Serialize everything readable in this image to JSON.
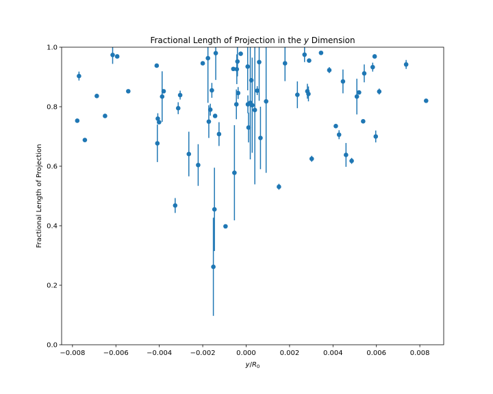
{
  "chart_data": {
    "type": "scatter",
    "title": "Fractional Length of Projection in the y Dimension",
    "title_parts": [
      "Fractional Length of Projection in the ",
      "y",
      " Dimension"
    ],
    "xlabel": "y/R₀",
    "xlabel_parts": {
      "y": "y",
      "slash": "/",
      "R": "R",
      "sub": "0"
    },
    "ylabel": "Fractional Length of Projection",
    "xlim": [
      -0.0085,
      0.0091
    ],
    "ylim": [
      0.0,
      1.0
    ],
    "xticks": [
      -0.008,
      -0.006,
      -0.004,
      -0.002,
      0.0,
      0.002,
      0.004,
      0.006,
      0.008
    ],
    "xtick_labels": [
      "−0.008",
      "−0.006",
      "−0.004",
      "−0.002",
      "0.000",
      "0.002",
      "0.004",
      "0.006",
      "0.008"
    ],
    "yticks": [
      0.0,
      0.2,
      0.4,
      0.6,
      0.8,
      1.0
    ],
    "ytick_labels": [
      "0.0",
      "0.2",
      "0.4",
      "0.6",
      "0.8",
      "1.0"
    ],
    "grid": false,
    "color": "#1f77b4",
    "points": [
      {
        "x": -0.00778,
        "y": 0.753,
        "err": 0.0
      },
      {
        "x": -0.0077,
        "y": 0.903,
        "err": 0.015
      },
      {
        "x": -0.00743,
        "y": 0.688,
        "err": 0.0
      },
      {
        "x": -0.00688,
        "y": 0.836,
        "err": 0.0
      },
      {
        "x": -0.0065,
        "y": 0.769,
        "err": 0.0
      },
      {
        "x": -0.00615,
        "y": 0.974,
        "err": 0.03
      },
      {
        "x": -0.00594,
        "y": 0.969,
        "err": 0.0
      },
      {
        "x": -0.00543,
        "y": 0.852,
        "err": 0.0
      },
      {
        "x": -0.00412,
        "y": 0.938,
        "err": 0.0
      },
      {
        "x": -0.00409,
        "y": 0.677,
        "err": 0.063
      },
      {
        "x": -0.00407,
        "y": 0.76,
        "err": 0.018
      },
      {
        "x": -0.00401,
        "y": 0.748,
        "err": 0.0
      },
      {
        "x": -0.00387,
        "y": 0.834,
        "err": 0.085
      },
      {
        "x": -0.0038,
        "y": 0.852,
        "err": 0.0
      },
      {
        "x": -0.00327,
        "y": 0.468,
        "err": 0.025
      },
      {
        "x": -0.00313,
        "y": 0.795,
        "err": 0.02
      },
      {
        "x": -0.00304,
        "y": 0.839,
        "err": 0.015
      },
      {
        "x": -0.00264,
        "y": 0.641,
        "err": 0.075
      },
      {
        "x": -0.00221,
        "y": 0.604,
        "err": 0.07
      },
      {
        "x": -0.002,
        "y": 0.946,
        "err": 0.0
      },
      {
        "x": -0.00176,
        "y": 0.963,
        "err": 0.15
      },
      {
        "x": -0.00172,
        "y": 0.75,
        "err": 0.055
      },
      {
        "x": -0.00165,
        "y": 0.79,
        "err": 0.02
      },
      {
        "x": -0.00158,
        "y": 0.855,
        "err": 0.025
      },
      {
        "x": -0.00151,
        "y": 0.262,
        "err": 0.165
      },
      {
        "x": -0.00146,
        "y": 0.455,
        "err": 0.14
      },
      {
        "x": -0.00143,
        "y": 0.769,
        "err": 0.0
      },
      {
        "x": -0.0014,
        "y": 0.98,
        "err": 0.09
      },
      {
        "x": -0.00125,
        "y": 0.708,
        "err": 0.04
      },
      {
        "x": -0.00095,
        "y": 0.398,
        "err": 0.0
      },
      {
        "x": -0.00059,
        "y": 0.927,
        "err": 0.0
      },
      {
        "x": -0.00054,
        "y": 0.578,
        "err": 0.16
      },
      {
        "x": -0.00045,
        "y": 0.808,
        "err": 0.05
      },
      {
        "x": -0.00043,
        "y": 0.926,
        "err": 0.05
      },
      {
        "x": -0.0004,
        "y": 0.952,
        "err": 0.05
      },
      {
        "x": -0.00037,
        "y": 0.846,
        "err": 0.02
      },
      {
        "x": -0.00025,
        "y": 0.978,
        "err": 0.0
      },
      {
        "x": 7e-05,
        "y": 0.935,
        "err": 0.08
      },
      {
        "x": 8e-05,
        "y": 0.808,
        "err": 0.03
      },
      {
        "x": 0.00011,
        "y": 0.73,
        "err": 0.05
      },
      {
        "x": 0.00019,
        "y": 0.813,
        "err": 0.19
      },
      {
        "x": 0.00024,
        "y": 0.889,
        "err": 0.0
      },
      {
        "x": 0.00028,
        "y": 0.805,
        "err": 0.16
      },
      {
        "x": 0.0004,
        "y": 0.789,
        "err": 0.25
      },
      {
        "x": 0.00051,
        "y": 0.854,
        "err": 0.015
      },
      {
        "x": 0.0006,
        "y": 0.95,
        "err": 0.13
      },
      {
        "x": 0.00066,
        "y": 0.695,
        "err": 0.105
      },
      {
        "x": 0.00092,
        "y": 0.818,
        "err": 0.24
      },
      {
        "x": 0.00151,
        "y": 0.531,
        "err": 0.01
      },
      {
        "x": 0.00179,
        "y": 0.946,
        "err": 0.06
      },
      {
        "x": 0.00236,
        "y": 0.84,
        "err": 0.045
      },
      {
        "x": 0.00269,
        "y": 0.975,
        "err": 0.025
      },
      {
        "x": 0.00282,
        "y": 0.852,
        "err": 0.025
      },
      {
        "x": 0.00287,
        "y": 0.843,
        "err": 0.025
      },
      {
        "x": 0.0029,
        "y": 0.955,
        "err": 0.0
      },
      {
        "x": 0.00302,
        "y": 0.625,
        "err": 0.01
      },
      {
        "x": 0.00345,
        "y": 0.981,
        "err": 0.0
      },
      {
        "x": 0.00383,
        "y": 0.923,
        "err": 0.01
      },
      {
        "x": 0.00413,
        "y": 0.735,
        "err": 0.0
      },
      {
        "x": 0.00428,
        "y": 0.706,
        "err": 0.015
      },
      {
        "x": 0.00446,
        "y": 0.885,
        "err": 0.04
      },
      {
        "x": 0.0046,
        "y": 0.638,
        "err": 0.04
      },
      {
        "x": 0.00486,
        "y": 0.618,
        "err": 0.01
      },
      {
        "x": 0.0051,
        "y": 0.834,
        "err": 0.06
      },
      {
        "x": 0.0052,
        "y": 0.848,
        "err": 0.0
      },
      {
        "x": 0.00539,
        "y": 0.751,
        "err": 0.0
      },
      {
        "x": 0.00544,
        "y": 0.912,
        "err": 0.03
      },
      {
        "x": 0.00583,
        "y": 0.933,
        "err": 0.015
      },
      {
        "x": 0.00592,
        "y": 0.969,
        "err": 0.0
      },
      {
        "x": 0.00597,
        "y": 0.7,
        "err": 0.02
      },
      {
        "x": 0.00613,
        "y": 0.851,
        "err": 0.01
      },
      {
        "x": 0.00737,
        "y": 0.942,
        "err": 0.015
      },
      {
        "x": 0.00829,
        "y": 0.82,
        "err": 0.0
      }
    ]
  }
}
